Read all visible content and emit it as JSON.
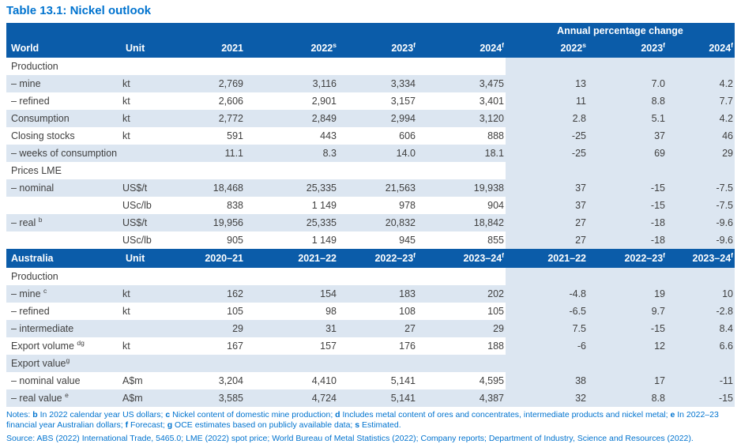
{
  "page": {
    "title": "Table 13.1: Nickel outlook",
    "notes_segments": [
      {
        "text": "Notes: ",
        "bold": false
      },
      {
        "text": "b",
        "bold": true
      },
      {
        "text": " In 2022 calendar year US dollars; ",
        "bold": false
      },
      {
        "text": "c",
        "bold": true
      },
      {
        "text": " Nickel content of domestic mine production; ",
        "bold": false
      },
      {
        "text": "d",
        "bold": true
      },
      {
        "text": " Includes metal content of ores and concentrates, intermediate products and nickel metal; ",
        "bold": false
      },
      {
        "text": "e",
        "bold": true
      },
      {
        "text": " In 2022–23 financial year Australian dollars; ",
        "bold": false
      },
      {
        "text": "f",
        "bold": true
      },
      {
        "text": " Forecast; ",
        "bold": false
      },
      {
        "text": "g",
        "bold": true
      },
      {
        "text": " OCE estimates based on publicly available data; ",
        "bold": false
      },
      {
        "text": "s",
        "bold": true
      },
      {
        "text": " Estimated.",
        "bold": false
      }
    ],
    "source": "Source: ABS (2022) International Trade, 5465.0; LME (2022) spot price; World Bureau of Metal Statistics (2022); Company reports; Department of Industry, Science and Resources (2022)."
  },
  "colors": {
    "header_blue": "#0b5ca9",
    "accent_blue": "#0073cf",
    "row_shade": "#dce6f1",
    "body_text": "#404040"
  },
  "table": {
    "group_header": "Annual percentage change",
    "sections": [
      {
        "name": "World",
        "columns": [
          {
            "t": "World"
          },
          {
            "t": "Unit"
          },
          {
            "t": "2021"
          },
          {
            "t": "2022",
            "sup": "s"
          },
          {
            "t": "2023",
            "sup": "f"
          },
          {
            "t": "2024",
            "sup": "f"
          },
          {
            "t": "2022",
            "sup": "s"
          },
          {
            "t": "2023",
            "sup": "f"
          },
          {
            "t": "2024",
            "sup": "f"
          }
        ],
        "rows": [
          {
            "label": "Production",
            "subheader": true
          },
          {
            "label": "– mine",
            "unit": "kt",
            "values": [
              "2,769",
              "3,116",
              "3,334",
              "3,475"
            ],
            "apc": [
              "13",
              "7.0",
              "4.2"
            ]
          },
          {
            "label": "– refined",
            "unit": "kt",
            "values": [
              "2,606",
              "2,901",
              "3,157",
              "3,401"
            ],
            "apc": [
              "11",
              "8.8",
              "7.7"
            ]
          },
          {
            "label": "Consumption",
            "unit": "kt",
            "values": [
              "2,772",
              "2,849",
              "2,994",
              "3,120"
            ],
            "apc": [
              "2.8",
              "5.1",
              "4.2"
            ]
          },
          {
            "label": "Closing stocks",
            "unit": "kt",
            "values": [
              "591",
              "443",
              "606",
              "888"
            ],
            "apc": [
              "-25",
              "37",
              "46"
            ]
          },
          {
            "label": "– weeks of consumption",
            "unit": "",
            "values": [
              "11.1",
              "8.3",
              "14.0",
              "18.1"
            ],
            "apc": [
              "-25",
              "69",
              "29"
            ]
          },
          {
            "label": "Prices LME",
            "subheader": true
          },
          {
            "label": "– nominal",
            "unit": "US$/t",
            "values": [
              "18,468",
              "25,335",
              "21,563",
              "19,938"
            ],
            "apc": [
              "37",
              "-15",
              "-7.5"
            ]
          },
          {
            "label": "",
            "unit": "USc/lb",
            "values": [
              "838",
              "1 149",
              "978",
              "904"
            ],
            "apc": [
              "37",
              "-15",
              "-7.5"
            ]
          },
          {
            "label": "– real ",
            "sup": "b",
            "unit": "US$/t",
            "values": [
              "19,956",
              "25,335",
              "20,832",
              "18,842"
            ],
            "apc": [
              "27",
              "-18",
              "-9.6"
            ]
          },
          {
            "label": "",
            "unit": "USc/lb",
            "values": [
              "905",
              "1 149",
              "945",
              "855"
            ],
            "apc": [
              "27",
              "-18",
              "-9.6"
            ]
          }
        ]
      },
      {
        "name": "Australia",
        "columns": [
          {
            "t": "Australia"
          },
          {
            "t": "Unit"
          },
          {
            "t": "2020–21"
          },
          {
            "t": "2021–22"
          },
          {
            "t": "2022–23",
            "sup": "f"
          },
          {
            "t": "2023–24",
            "sup": "f"
          },
          {
            "t": "2021–22"
          },
          {
            "t": "2022–23",
            "sup": "f"
          },
          {
            "t": "2023–24",
            "sup": "f"
          }
        ],
        "rows": [
          {
            "label": "Production",
            "subheader": true
          },
          {
            "label": "– mine ",
            "sup": "c",
            "unit": "kt",
            "values": [
              "162",
              "154",
              "183",
              "202"
            ],
            "apc": [
              "-4.8",
              "19",
              "10"
            ]
          },
          {
            "label": "– refined",
            "unit": "kt",
            "values": [
              "105",
              "98",
              "108",
              "105"
            ],
            "apc": [
              "-6.5",
              "9.7",
              "-2.8"
            ]
          },
          {
            "label": "– intermediate",
            "unit": "",
            "values": [
              "29",
              "31",
              "27",
              "29"
            ],
            "apc": [
              "7.5",
              "-15",
              "8.4"
            ]
          },
          {
            "label": "Export volume ",
            "sup": "dg",
            "unit": "kt",
            "values": [
              "167",
              "157",
              "176",
              "188"
            ],
            "apc": [
              "-6",
              "12",
              "6.6"
            ]
          },
          {
            "label": "Export value",
            "sup": "g",
            "subheader": true
          },
          {
            "label": "– nominal value",
            "unit": "A$m",
            "values": [
              "3,204",
              "4,410",
              "5,141",
              "4,595"
            ],
            "apc": [
              "38",
              "17",
              "-11"
            ]
          },
          {
            "label": "– real value ",
            "sup": "e",
            "unit": "A$m",
            "values": [
              "3,585",
              "4,724",
              "5,141",
              "4,387"
            ],
            "apc": [
              "32",
              "8.8",
              "-15"
            ]
          }
        ]
      }
    ]
  }
}
